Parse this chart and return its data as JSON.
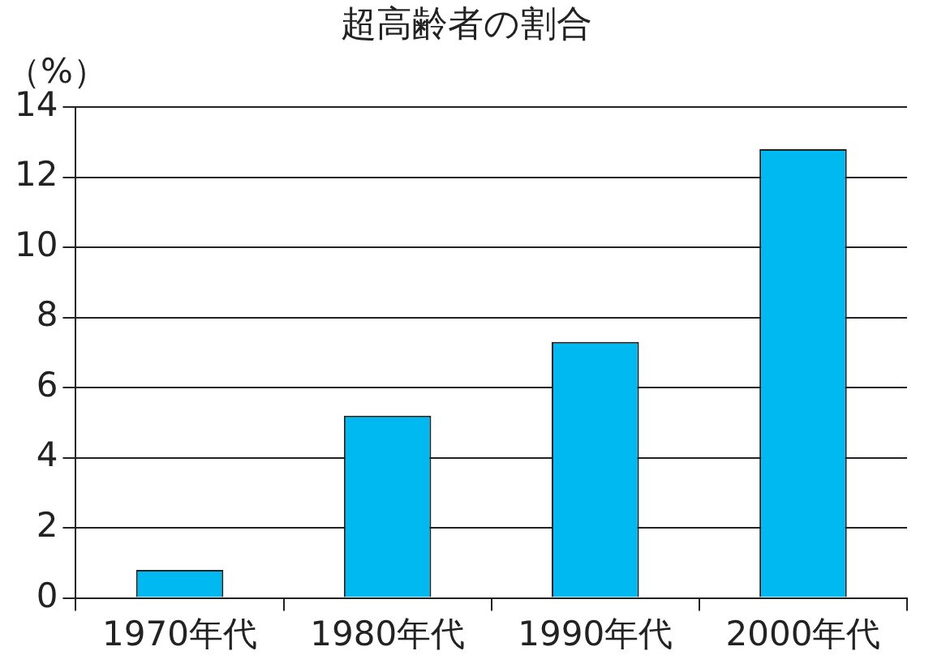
{
  "chart_data": {
    "type": "bar",
    "title": "超高齢者の割合",
    "ylabel": "（%）",
    "categories": [
      "1970年代",
      "1980年代",
      "1990年代",
      "2000年代"
    ],
    "values": [
      0.8,
      5.2,
      7.3,
      12.8
    ],
    "color": "#00b9f0",
    "ylim": [
      0,
      14
    ],
    "yticks": [
      0,
      2,
      4,
      6,
      8,
      10,
      12,
      14
    ],
    "grid": "y",
    "legend": false
  }
}
